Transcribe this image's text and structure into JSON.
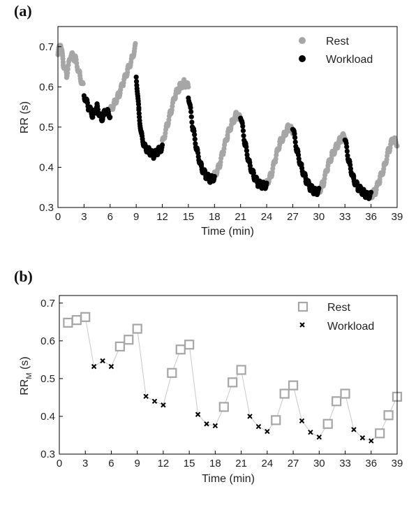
{
  "chart_data": [
    {
      "panel_label": "(a)",
      "type": "scatter",
      "xlabel": "Time (min)",
      "ylabel": "RR (s)",
      "xlim": [
        0,
        39
      ],
      "ylim": [
        0.3,
        0.75
      ],
      "xticks": [
        0,
        3,
        6,
        9,
        12,
        15,
        18,
        21,
        24,
        27,
        30,
        33,
        36,
        39
      ],
      "yticks": [
        0.3,
        0.4,
        0.5,
        0.6,
        0.7
      ],
      "legend_position": "top-right",
      "colors": {
        "rest": "#a6a6a6",
        "workload": "#000000"
      },
      "series": [
        {
          "name": "Rest",
          "segments": [
            {
              "x": [
                0,
                0.3,
                0.6,
                1.0,
                1.5,
                2.0,
                2.5,
                2.9
              ],
              "y": [
                0.68,
                0.71,
                0.66,
                0.63,
                0.68,
                0.67,
                0.63,
                0.6
              ]
            },
            {
              "x": [
                6,
                6.5,
                7.0,
                7.5,
                8.0,
                8.5,
                8.9
              ],
              "y": [
                0.54,
                0.56,
                0.58,
                0.61,
                0.64,
                0.67,
                0.7
              ]
            },
            {
              "x": [
                12,
                12.5,
                13.0,
                13.5,
                14.0,
                14.5,
                15.0
              ],
              "y": [
                0.46,
                0.5,
                0.54,
                0.58,
                0.6,
                0.61,
                0.6
              ]
            },
            {
              "x": [
                18,
                18.5,
                19.0,
                19.5,
                20.0,
                20.5,
                21.0
              ],
              "y": [
                0.38,
                0.4,
                0.44,
                0.48,
                0.51,
                0.53,
                0.52
              ]
            },
            {
              "x": [
                24,
                24.5,
                25.0,
                25.5,
                26.0,
                26.5,
                27.0
              ],
              "y": [
                0.36,
                0.38,
                0.42,
                0.46,
                0.48,
                0.5,
                0.49
              ]
            },
            {
              "x": [
                30,
                30.5,
                31.0,
                31.5,
                32.0,
                32.5,
                33.0
              ],
              "y": [
                0.34,
                0.36,
                0.4,
                0.43,
                0.45,
                0.47,
                0.48
              ]
            },
            {
              "x": [
                36,
                36.5,
                37.0,
                37.5,
                38.0,
                38.5,
                39.0
              ],
              "y": [
                0.33,
                0.34,
                0.37,
                0.4,
                0.44,
                0.47,
                0.46
              ]
            }
          ]
        },
        {
          "name": "Workload",
          "segments": [
            {
              "x": [
                3,
                3.5,
                4.0,
                4.5,
                5.0,
                5.5,
                6.0
              ],
              "y": [
                0.58,
                0.55,
                0.53,
                0.55,
                0.52,
                0.54,
                0.53
              ]
            },
            {
              "x": [
                9,
                9.3,
                9.6,
                10.0,
                10.5,
                11.0,
                11.5,
                12.0
              ],
              "y": [
                0.63,
                0.54,
                0.48,
                0.45,
                0.44,
                0.43,
                0.44,
                0.45
              ]
            },
            {
              "x": [
                15,
                15.5,
                16.0,
                16.5,
                17.0,
                17.5,
                18.0
              ],
              "y": [
                0.58,
                0.5,
                0.44,
                0.4,
                0.38,
                0.37,
                0.375
              ]
            },
            {
              "x": [
                21,
                21.5,
                22.0,
                22.5,
                23.0,
                23.5,
                24.0
              ],
              "y": [
                0.53,
                0.46,
                0.41,
                0.38,
                0.36,
                0.355,
                0.355
              ]
            },
            {
              "x": [
                27,
                27.5,
                28.0,
                28.5,
                29.0,
                29.5,
                30.0
              ],
              "y": [
                0.5,
                0.44,
                0.4,
                0.37,
                0.35,
                0.34,
                0.34
              ]
            },
            {
              "x": [
                33,
                33.5,
                34.0,
                34.5,
                35.0,
                35.5,
                36.0
              ],
              "y": [
                0.47,
                0.41,
                0.37,
                0.35,
                0.34,
                0.33,
                0.33
              ]
            }
          ]
        }
      ]
    },
    {
      "panel_label": "(b)",
      "type": "scatter",
      "xlabel": "Time (min)",
      "ylabel": "RR",
      "ylabel_sub": "M",
      "ylabel_suffix": " (s)",
      "xlim": [
        0,
        39
      ],
      "ylim": [
        0.3,
        0.72
      ],
      "xticks": [
        0,
        3,
        6,
        9,
        12,
        15,
        18,
        21,
        24,
        27,
        30,
        33,
        36,
        39
      ],
      "yticks": [
        0.3,
        0.4,
        0.5,
        0.6,
        0.7
      ],
      "legend_position": "top-right",
      "colors": {
        "rest": "#a6a6a6",
        "workload": "#000000",
        "line": "#c8c8c8"
      },
      "series": [
        {
          "name": "Rest",
          "marker": "square",
          "x": [
            1,
            2,
            3,
            7,
            8,
            9,
            13,
            14,
            15,
            19,
            20,
            21,
            25,
            26,
            27,
            31,
            32,
            33,
            37,
            38,
            39
          ],
          "y": [
            0.648,
            0.655,
            0.663,
            0.585,
            0.603,
            0.632,
            0.515,
            0.577,
            0.59,
            0.425,
            0.49,
            0.523,
            0.39,
            0.46,
            0.482,
            0.38,
            0.44,
            0.46,
            0.355,
            0.403,
            0.452
          ]
        },
        {
          "name": "Workload",
          "marker": "x",
          "x": [
            4,
            5,
            6,
            10,
            11,
            12,
            16,
            17,
            18,
            22,
            23,
            24,
            28,
            29,
            30,
            34,
            35,
            36
          ],
          "y": [
            0.532,
            0.547,
            0.532,
            0.453,
            0.44,
            0.43,
            0.405,
            0.38,
            0.375,
            0.4,
            0.373,
            0.36,
            0.388,
            0.358,
            0.345,
            0.365,
            0.343,
            0.335
          ]
        }
      ]
    }
  ]
}
